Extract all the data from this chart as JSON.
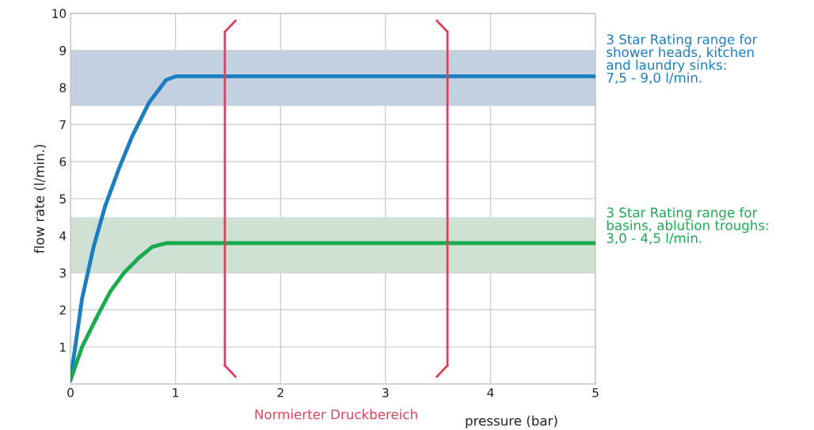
{
  "chart_data": {
    "type": "line",
    "xlabel": "pressure (bar)",
    "ylabel": "flow rate (l/min.)",
    "series": [
      {
        "color": "#1a7fc1",
        "x": [
          0,
          0.11,
          0.22,
          0.33,
          0.46,
          0.59,
          0.75,
          0.91,
          1.0,
          5
        ],
        "values": [
          0.1,
          2.3,
          3.7,
          4.8,
          5.8,
          6.7,
          7.6,
          8.2,
          8.3,
          8.3
        ]
      },
      {
        "color": "#1aaa50",
        "x": [
          0,
          0.11,
          0.25,
          0.38,
          0.51,
          0.65,
          0.78,
          0.91,
          1.0,
          5
        ],
        "values": [
          0.1,
          1.0,
          1.8,
          2.5,
          3.0,
          3.4,
          3.7,
          3.8,
          3.8,
          3.8
        ]
      }
    ],
    "bands": [
      {
        "axis": "y",
        "from": 7.5,
        "to": 9.0,
        "color": "#c4cfe0",
        "label": "3 Star Rating range for\nshower heads, kitchen\nand laundry sinks:\n7,5 - 9,0 l/min."
      },
      {
        "axis": "y",
        "from": 3.0,
        "to": 4.5,
        "color": "#d0e0d5",
        "label": "3 Star Rating range for\nbasins, ablution troughs:\n3,0 - 4,5 l/min."
      }
    ],
    "ref_lines": [
      {
        "axis": "x",
        "value": 1.47,
        "color": "#e0405a",
        "line_style": "solid"
      },
      {
        "axis": "x",
        "value": 3.59,
        "color": "#e0405a",
        "line_style": "solid"
      }
    ],
    "annotations": [
      "Normierter Druckbereich"
    ],
    "xlim": [
      0,
      5
    ],
    "ylim": [
      0,
      10
    ],
    "xticks": [
      0,
      1,
      2,
      3,
      4,
      5
    ],
    "yticks": [
      1,
      2,
      3,
      4,
      5,
      6,
      7,
      8,
      9,
      10
    ],
    "grid": true,
    "line_style": "solid",
    "marker": "none"
  }
}
